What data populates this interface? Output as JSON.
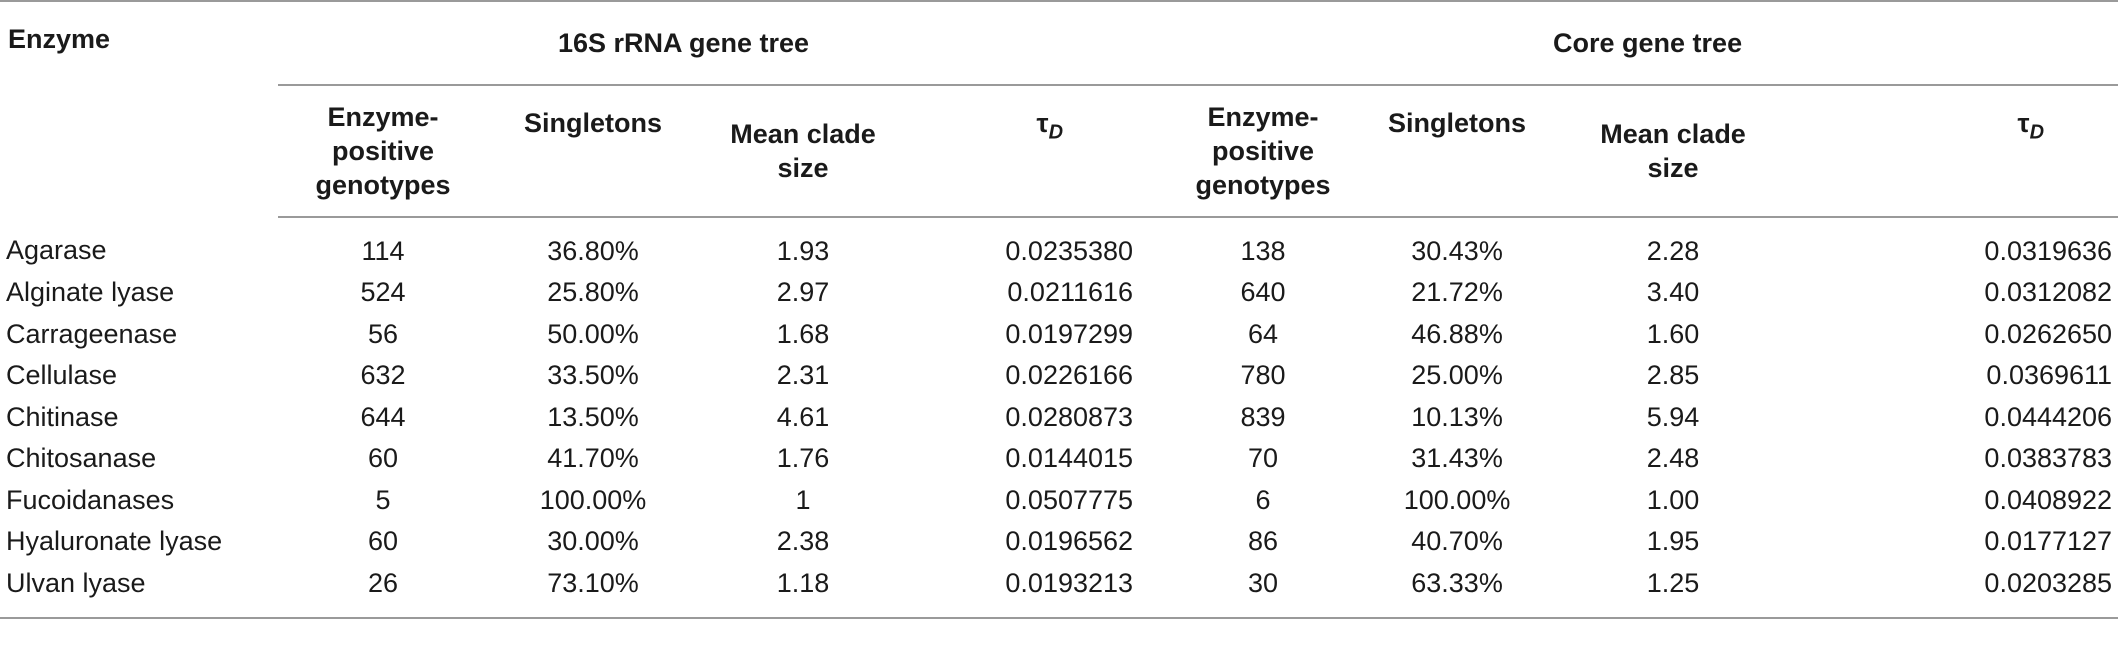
{
  "table": {
    "enzyme_header": "Enzyme",
    "groups": [
      {
        "label": "16S rRNA gene tree"
      },
      {
        "label": "Core gene tree"
      }
    ],
    "subheaders": [
      {
        "line1": "Enzyme-positive",
        "line2": "genotypes"
      },
      {
        "line1": "Singletons",
        "line2": ""
      },
      {
        "line1": "Mean clade",
        "line2": "size"
      },
      {
        "tau": "τ",
        "tau_sub": "D"
      }
    ],
    "rows": [
      {
        "enzyme": "Agarase",
        "a": [
          "114",
          "36.80%",
          "1.93",
          "0.0235380"
        ],
        "b": [
          "138",
          "30.43%",
          "2.28",
          "0.0319636"
        ]
      },
      {
        "enzyme": "Alginate lyase",
        "a": [
          "524",
          "25.80%",
          "2.97",
          "0.0211616"
        ],
        "b": [
          "640",
          "21.72%",
          "3.40",
          "0.0312082"
        ]
      },
      {
        "enzyme": "Carrageenase",
        "a": [
          "56",
          "50.00%",
          "1.68",
          "0.0197299"
        ],
        "b": [
          "64",
          "46.88%",
          "1.60",
          "0.0262650"
        ]
      },
      {
        "enzyme": "Cellulase",
        "a": [
          "632",
          "33.50%",
          "2.31",
          "0.0226166"
        ],
        "b": [
          "780",
          "25.00%",
          "2.85",
          "0.0369611"
        ]
      },
      {
        "enzyme": "Chitinase",
        "a": [
          "644",
          "13.50%",
          "4.61",
          "0.0280873"
        ],
        "b": [
          "839",
          "10.13%",
          "5.94",
          "0.0444206"
        ]
      },
      {
        "enzyme": "Chitosanase",
        "a": [
          "60",
          "41.70%",
          "1.76",
          "0.0144015"
        ],
        "b": [
          "70",
          "31.43%",
          "2.48",
          "0.0383783"
        ]
      },
      {
        "enzyme": "Fucoidanases",
        "a": [
          "5",
          "100.00%",
          "1",
          "0.0507775"
        ],
        "b": [
          "6",
          "100.00%",
          "1.00",
          "0.0408922"
        ]
      },
      {
        "enzyme": "Hyaluronate lyase",
        "a": [
          "60",
          "30.00%",
          "2.38",
          "0.0196562"
        ],
        "b": [
          "86",
          "40.70%",
          "1.95",
          "0.0177127"
        ]
      },
      {
        "enzyme": "Ulvan lyase",
        "a": [
          "26",
          "73.10%",
          "1.18",
          "0.0193213"
        ],
        "b": [
          "30",
          "63.33%",
          "1.25",
          "0.0203285"
        ]
      }
    ]
  }
}
